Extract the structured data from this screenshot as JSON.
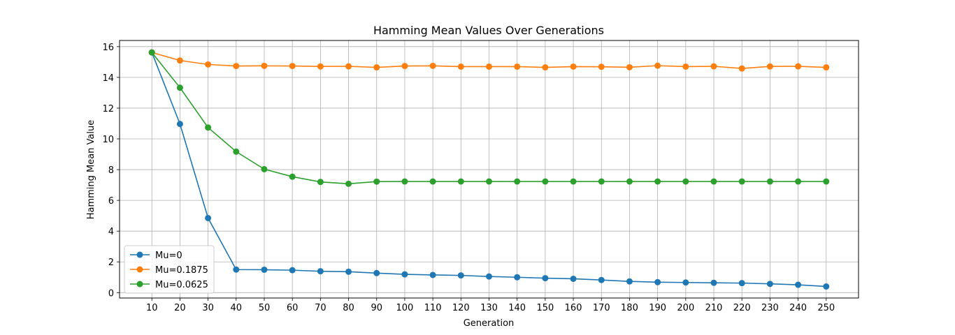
{
  "chart_data": {
    "type": "line",
    "title": "Hamming Mean Values Over Generations",
    "xlabel": "Generation",
    "ylabel": "Hamming Mean Value",
    "x": [
      10,
      20,
      30,
      40,
      50,
      60,
      70,
      80,
      90,
      100,
      110,
      120,
      130,
      140,
      150,
      160,
      170,
      180,
      190,
      200,
      210,
      220,
      230,
      240,
      250
    ],
    "xlim": [
      -1.5,
      261.5
    ],
    "ylim": [
      -0.35,
      16.4
    ],
    "yticks": [
      0,
      2,
      4,
      6,
      8,
      10,
      12,
      14,
      16
    ],
    "grid": true,
    "legend_position": "lower-left",
    "series": [
      {
        "name": "Mu=0",
        "color": "#1f77b4",
        "values": [
          15.62,
          10.97,
          4.85,
          1.5,
          1.49,
          1.46,
          1.39,
          1.36,
          1.27,
          1.19,
          1.15,
          1.12,
          1.05,
          1.0,
          0.94,
          0.9,
          0.82,
          0.73,
          0.68,
          0.66,
          0.64,
          0.62,
          0.57,
          0.51,
          0.4
        ]
      },
      {
        "name": "Mu=0.1875",
        "color": "#ff7f0e",
        "values": [
          15.62,
          15.1,
          14.84,
          14.74,
          14.75,
          14.74,
          14.71,
          14.72,
          14.65,
          14.74,
          14.75,
          14.7,
          14.7,
          14.7,
          14.65,
          14.7,
          14.69,
          14.66,
          14.76,
          14.7,
          14.72,
          14.58,
          14.71,
          14.72,
          14.65
        ]
      },
      {
        "name": "Mu=0.0625",
        "color": "#2ca02c",
        "values": [
          15.62,
          13.33,
          10.74,
          9.17,
          8.03,
          7.54,
          7.2,
          7.08,
          7.22,
          7.23,
          7.23,
          7.23,
          7.23,
          7.23,
          7.23,
          7.23,
          7.23,
          7.23,
          7.23,
          7.23,
          7.23,
          7.23,
          7.23,
          7.23,
          7.23
        ]
      }
    ]
  }
}
